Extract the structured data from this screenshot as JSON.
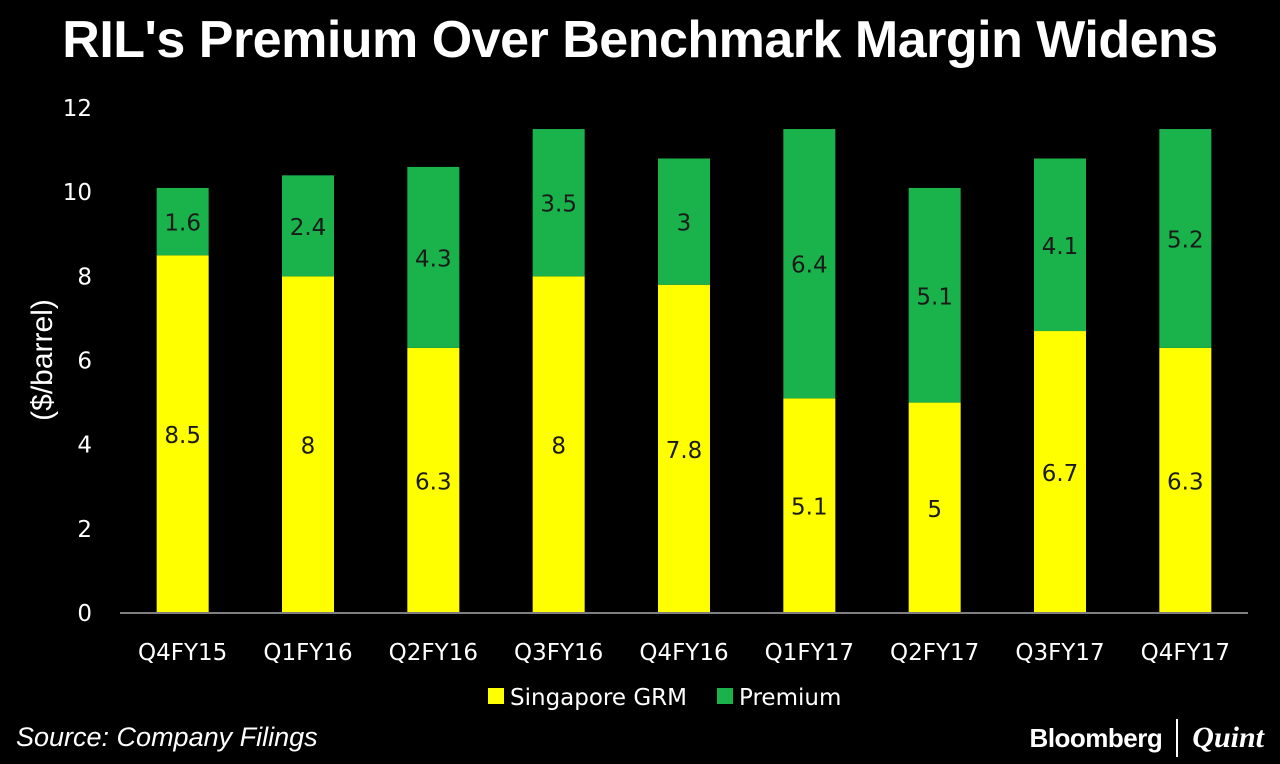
{
  "chart_data": {
    "type": "bar",
    "stacked": true,
    "title": "RIL's Premium Over Benchmark Margin Widens",
    "xlabel": "",
    "ylabel": "($/barrel)",
    "ylim": [
      0,
      12
    ],
    "yticks": [
      0,
      2,
      4,
      6,
      8,
      10,
      12
    ],
    "categories": [
      "Q4FY15",
      "Q1FY16",
      "Q2FY16",
      "Q3FY16",
      "Q4FY16",
      "Q1FY17",
      "Q2FY17",
      "Q3FY17",
      "Q4FY17"
    ],
    "series": [
      {
        "name": "Singapore GRM",
        "color": "#ffff00",
        "values": [
          8.5,
          8,
          6.3,
          8,
          7.8,
          5.1,
          5,
          6.7,
          6.3
        ],
        "labels": [
          "8.5",
          "8",
          "6.3",
          "8",
          "7.8",
          "5.1",
          "5",
          "6.7",
          "6.3"
        ]
      },
      {
        "name": "Premium",
        "color": "#19b24b",
        "values": [
          1.6,
          2.4,
          4.3,
          3.5,
          3,
          6.4,
          5.1,
          4.1,
          5.2
        ],
        "labels": [
          "1.6",
          "2.4",
          "4.3",
          "3.5",
          "3",
          "6.4",
          "5.1",
          "4.1",
          "5.2"
        ]
      }
    ],
    "legend": "bottom",
    "grid": false
  },
  "source": "Source: Company Filings",
  "brand": {
    "primary": "Bloomberg",
    "secondary": "Quint"
  },
  "colors": {
    "background": "#000000",
    "text": "#ffffff",
    "axis": "#7f7f7f",
    "label": "#1a1a1a"
  }
}
